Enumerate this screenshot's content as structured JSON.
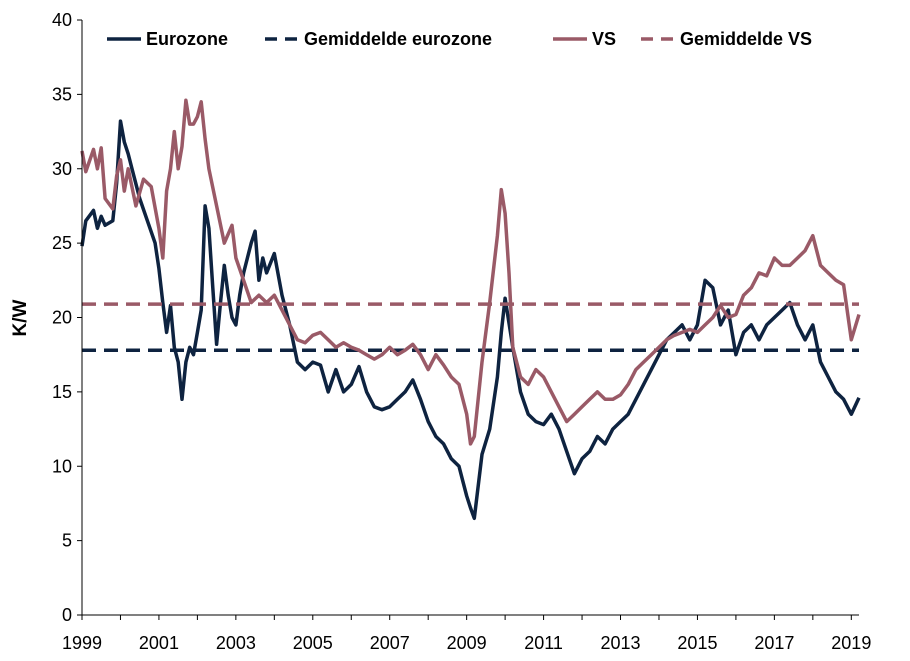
{
  "chart_data": {
    "type": "line",
    "title": "",
    "xlabel": "",
    "ylabel": "K/W",
    "xlim": [
      1999,
      2019.2
    ],
    "ylim": [
      0,
      40
    ],
    "grid": false,
    "legend_position": "top",
    "x_ticks": [
      1999,
      2001,
      2003,
      2005,
      2007,
      2009,
      2011,
      2013,
      2015,
      2017,
      2019
    ],
    "x_tick_labels": [
      "1999",
      "2001",
      "2003",
      "2005",
      "2007",
      "2009",
      "2011",
      "2013",
      "2015",
      "2017",
      "2019"
    ],
    "y_ticks": [
      0,
      5,
      10,
      15,
      20,
      25,
      30,
      35,
      40
    ],
    "y_tick_labels": [
      "0",
      "5",
      "10",
      "15",
      "20",
      "25",
      "30",
      "35",
      "40"
    ],
    "series": [
      {
        "name": "Eurozone",
        "style": "solid",
        "color": "#0e2340",
        "x": [
          1999.0,
          1999.1,
          1999.3,
          1999.4,
          1999.5,
          1999.6,
          1999.8,
          1999.9,
          2000.0,
          2000.1,
          2000.2,
          2000.3,
          2000.5,
          2000.7,
          2000.9,
          2001.0,
          2001.1,
          2001.2,
          2001.3,
          2001.4,
          2001.5,
          2001.6,
          2001.7,
          2001.8,
          2001.9,
          2002.0,
          2002.1,
          2002.2,
          2002.3,
          2002.4,
          2002.5,
          2002.6,
          2002.7,
          2002.8,
          2002.9,
          2003.0,
          2003.1,
          2003.2,
          2003.3,
          2003.4,
          2003.5,
          2003.6,
          2003.7,
          2003.8,
          2004.0,
          2004.2,
          2004.4,
          2004.6,
          2004.8,
          2005.0,
          2005.2,
          2005.4,
          2005.6,
          2005.8,
          2006.0,
          2006.2,
          2006.4,
          2006.6,
          2006.8,
          2007.0,
          2007.2,
          2007.4,
          2007.6,
          2007.8,
          2008.0,
          2008.2,
          2008.4,
          2008.6,
          2008.8,
          2008.9,
          2009.0,
          2009.1,
          2009.2,
          2009.4,
          2009.6,
          2009.8,
          2009.9,
          2010.0,
          2010.2,
          2010.4,
          2010.6,
          2010.8,
          2011.0,
          2011.2,
          2011.4,
          2011.6,
          2011.8,
          2012.0,
          2012.2,
          2012.4,
          2012.6,
          2012.8,
          2013.0,
          2013.2,
          2013.4,
          2013.6,
          2013.8,
          2014.0,
          2014.2,
          2014.4,
          2014.6,
          2014.8,
          2015.0,
          2015.2,
          2015.4,
          2015.6,
          2015.8,
          2016.0,
          2016.2,
          2016.4,
          2016.6,
          2016.8,
          2017.0,
          2017.2,
          2017.4,
          2017.6,
          2017.8,
          2018.0,
          2018.2,
          2018.4,
          2018.6,
          2018.8,
          2019.0,
          2019.2
        ],
        "values": [
          24.8,
          26.5,
          27.2,
          26.0,
          26.8,
          26.2,
          26.5,
          29.0,
          33.2,
          31.8,
          31.0,
          30.0,
          28.0,
          26.5,
          25.0,
          23.3,
          21.0,
          19.0,
          20.8,
          18.0,
          17.0,
          14.5,
          17.0,
          18.0,
          17.5,
          19.0,
          20.5,
          27.5,
          26.0,
          22.0,
          18.2,
          21.0,
          23.5,
          21.5,
          20.0,
          19.5,
          21.5,
          23.0,
          24.0,
          25.0,
          25.8,
          22.5,
          24.0,
          23.0,
          24.3,
          21.5,
          19.5,
          17.0,
          16.5,
          17.0,
          16.8,
          15.0,
          16.5,
          15.0,
          15.5,
          16.7,
          15.0,
          14.0,
          13.8,
          14.0,
          14.5,
          15.0,
          15.8,
          14.5,
          13.0,
          12.0,
          11.5,
          10.5,
          10.0,
          9.0,
          8.0,
          7.2,
          6.5,
          10.8,
          12.5,
          16.0,
          19.0,
          21.3,
          18.0,
          15.0,
          13.5,
          13.0,
          12.8,
          13.5,
          12.5,
          11.0,
          9.5,
          10.5,
          11.0,
          12.0,
          11.5,
          12.5,
          13.0,
          13.5,
          14.5,
          15.5,
          16.5,
          17.5,
          18.5,
          19.0,
          19.5,
          18.5,
          19.5,
          22.5,
          22.0,
          19.5,
          20.5,
          17.5,
          19.0,
          19.5,
          18.5,
          19.5,
          20.0,
          20.5,
          21.0,
          19.5,
          18.5,
          19.5,
          17.0,
          16.0,
          15.0,
          14.5,
          13.5,
          14.6
        ]
      },
      {
        "name": "Gemiddelde eurozone",
        "style": "dashed",
        "color": "#0e2340",
        "x": [
          1999.0,
          2019.2
        ],
        "values": [
          17.8,
          17.8
        ]
      },
      {
        "name": "VS",
        "style": "solid",
        "color": "#9a5a67",
        "x": [
          1999.0,
          1999.1,
          1999.3,
          1999.4,
          1999.5,
          1999.6,
          1999.8,
          1999.9,
          2000.0,
          2000.1,
          2000.2,
          2000.4,
          2000.6,
          2000.8,
          2001.0,
          2001.1,
          2001.2,
          2001.3,
          2001.4,
          2001.5,
          2001.6,
          2001.7,
          2001.8,
          2001.9,
          2002.0,
          2002.1,
          2002.2,
          2002.3,
          2002.5,
          2002.7,
          2002.9,
          2003.0,
          2003.2,
          2003.4,
          2003.6,
          2003.8,
          2004.0,
          2004.2,
          2004.4,
          2004.6,
          2004.8,
          2005.0,
          2005.2,
          2005.4,
          2005.6,
          2005.8,
          2006.0,
          2006.2,
          2006.4,
          2006.6,
          2006.8,
          2007.0,
          2007.2,
          2007.4,
          2007.6,
          2007.8,
          2008.0,
          2008.2,
          2008.4,
          2008.6,
          2008.8,
          2009.0,
          2009.1,
          2009.2,
          2009.4,
          2009.6,
          2009.8,
          2009.9,
          2010.0,
          2010.1,
          2010.2,
          2010.4,
          2010.6,
          2010.8,
          2011.0,
          2011.2,
          2011.4,
          2011.6,
          2011.8,
          2012.0,
          2012.2,
          2012.4,
          2012.6,
          2012.8,
          2013.0,
          2013.2,
          2013.4,
          2013.6,
          2013.8,
          2014.0,
          2014.2,
          2014.4,
          2014.6,
          2014.8,
          2015.0,
          2015.2,
          2015.4,
          2015.6,
          2015.8,
          2016.0,
          2016.2,
          2016.4,
          2016.6,
          2016.8,
          2017.0,
          2017.2,
          2017.4,
          2017.6,
          2017.8,
          2018.0,
          2018.2,
          2018.4,
          2018.6,
          2018.8,
          2019.0,
          2019.2
        ],
        "values": [
          31.2,
          29.8,
          31.3,
          30.0,
          31.4,
          28.0,
          27.3,
          29.5,
          30.6,
          28.5,
          30.0,
          27.5,
          29.3,
          28.8,
          26.0,
          24.0,
          28.5,
          30.0,
          32.5,
          30.0,
          31.5,
          34.6,
          33.0,
          33.0,
          33.5,
          34.5,
          32.0,
          30.0,
          27.5,
          25.0,
          26.2,
          24.0,
          22.5,
          21.0,
          21.5,
          21.0,
          21.5,
          20.5,
          19.5,
          18.5,
          18.3,
          18.8,
          19.0,
          18.5,
          18.0,
          18.3,
          18.0,
          17.8,
          17.5,
          17.2,
          17.5,
          18.0,
          17.5,
          17.8,
          18.2,
          17.5,
          16.5,
          17.5,
          16.8,
          16.0,
          15.5,
          13.5,
          11.5,
          12.0,
          17.0,
          21.0,
          25.5,
          28.6,
          27.0,
          23.0,
          18.0,
          16.0,
          15.5,
          16.5,
          16.0,
          15.0,
          14.0,
          13.0,
          13.5,
          14.0,
          14.5,
          15.0,
          14.5,
          14.5,
          14.8,
          15.5,
          16.5,
          17.0,
          17.5,
          18.0,
          18.5,
          18.8,
          19.0,
          19.2,
          19.0,
          19.5,
          20.0,
          20.8,
          20.0,
          20.2,
          21.5,
          22.0,
          23.0,
          22.8,
          24.0,
          23.5,
          23.5,
          24.0,
          24.5,
          25.5,
          23.5,
          23.0,
          22.5,
          22.2,
          18.5,
          20.2
        ]
      },
      {
        "name": "Gemiddelde VS",
        "style": "dashed",
        "color": "#9a5a67",
        "x": [
          1999.0,
          2019.2
        ],
        "values": [
          20.9,
          20.9
        ]
      }
    ]
  }
}
